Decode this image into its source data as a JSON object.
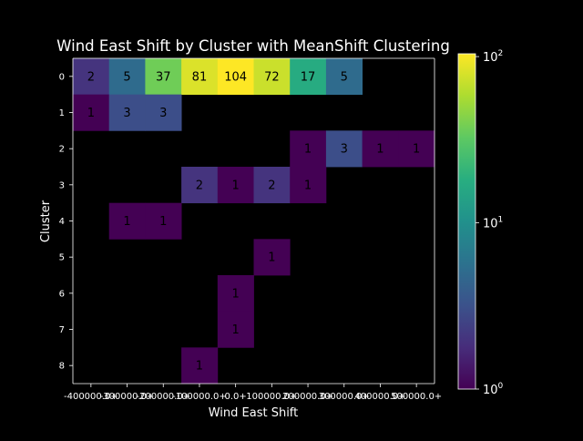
{
  "chart_data": {
    "type": "heatmap",
    "title": "Wind East Shift by Cluster with MeanShift Clustering",
    "xlabel": "Wind East Shift",
    "ylabel": "Cluster",
    "x_categories": [
      "-400000.0+",
      "-300000.0+",
      "-200000.0+",
      "-100000.0+",
      "0.0+",
      "100000.0+",
      "200000.0+",
      "300000.0+",
      "400000.0+",
      "500000.0+"
    ],
    "y_categories": [
      "0",
      "1",
      "2",
      "3",
      "4",
      "5",
      "6",
      "7",
      "8"
    ],
    "values": [
      [
        2,
        5,
        37,
        81,
        104,
        72,
        17,
        5,
        null,
        null
      ],
      [
        1,
        3,
        3,
        null,
        null,
        null,
        null,
        null,
        null,
        null
      ],
      [
        null,
        null,
        null,
        null,
        null,
        null,
        1,
        3,
        1,
        1
      ],
      [
        null,
        null,
        null,
        2,
        1,
        2,
        1,
        null,
        null,
        null
      ],
      [
        null,
        1,
        1,
        null,
        null,
        null,
        null,
        null,
        null,
        null
      ],
      [
        null,
        null,
        null,
        null,
        null,
        1,
        null,
        null,
        null,
        null
      ],
      [
        null,
        null,
        null,
        null,
        1,
        null,
        null,
        null,
        null,
        null
      ],
      [
        null,
        null,
        null,
        null,
        1,
        null,
        null,
        null,
        null,
        null
      ],
      [
        null,
        null,
        null,
        1,
        null,
        null,
        null,
        null,
        null,
        null
      ]
    ],
    "colorbar": {
      "scale": "log",
      "colormap": "viridis",
      "vmin": 1,
      "vmax": 104,
      "ticks": [
        {
          "value": 1,
          "base": "10",
          "exp": "0"
        },
        {
          "value": 10,
          "base": "10",
          "exp": "1"
        },
        {
          "value": 100,
          "base": "10",
          "exp": "2"
        }
      ]
    },
    "background_color": "#000000",
    "text_color": "#ffffff",
    "grid": false
  }
}
